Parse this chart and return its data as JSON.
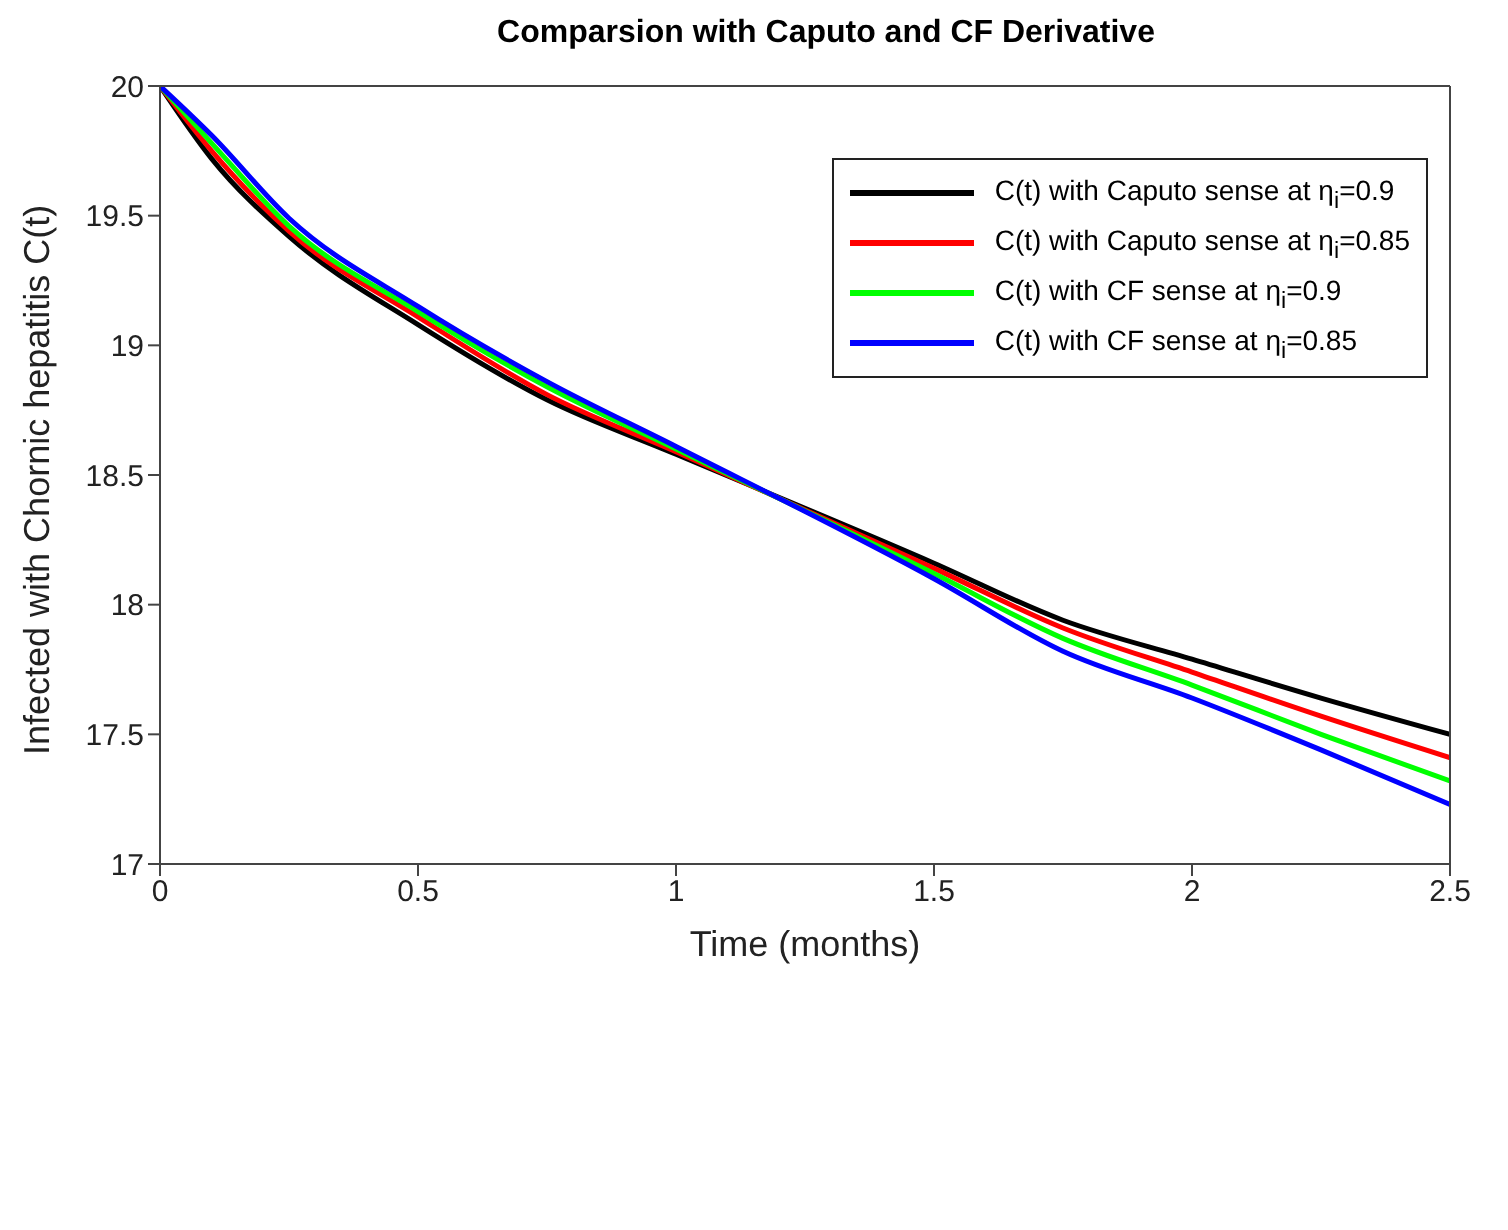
{
  "chart_data": {
    "type": "line",
    "title": "Comparsion with Caputo and CF Derivative",
    "xlabel": "Time (months)",
    "ylabel": "Infected with Chornic hepatitis C(t)",
    "x": [
      0,
      0.1,
      0.25,
      0.5,
      0.75,
      1,
      1.5,
      1.75,
      2,
      2.25,
      2.5
    ],
    "series": [
      {
        "name": "C(t) with Caputo sense at η$_{i}$=0.9",
        "color": "#000000",
        "values": [
          20,
          19.72,
          19.42,
          19.08,
          18.79,
          18.58,
          18.16,
          17.94,
          17.79,
          17.64,
          17.5
        ]
      },
      {
        "name": "C(t) with Caputo sense at η$_{i}$=0.85",
        "color": "#ff0000",
        "values": [
          20,
          19.75,
          19.44,
          19.11,
          18.81,
          18.59,
          18.14,
          17.91,
          17.74,
          17.57,
          17.41
        ]
      },
      {
        "name": "C(t) with CF sense at η$_{i}$=0.9",
        "color": "#00ff00",
        "values": [
          20,
          19.78,
          19.46,
          19.13,
          18.84,
          18.6,
          18.12,
          17.87,
          17.69,
          17.5,
          17.32
        ]
      },
      {
        "name": "C(t) with CF sense at η$_{i}$=0.85",
        "color": "#0000ff",
        "values": [
          20,
          19.81,
          19.49,
          19.15,
          18.86,
          18.61,
          18.1,
          17.82,
          17.64,
          17.44,
          17.23
        ]
      }
    ],
    "xlim": [
      0,
      2.5
    ],
    "xticks": [
      0,
      0.5,
      1,
      1.5,
      2,
      2.5
    ],
    "ylim": [
      17,
      20
    ],
    "yticks": [
      17,
      17.5,
      18,
      18.5,
      19,
      19.5,
      20
    ],
    "grid": false,
    "legend": "top right",
    "marker": "none",
    "line_style": "solid"
  }
}
